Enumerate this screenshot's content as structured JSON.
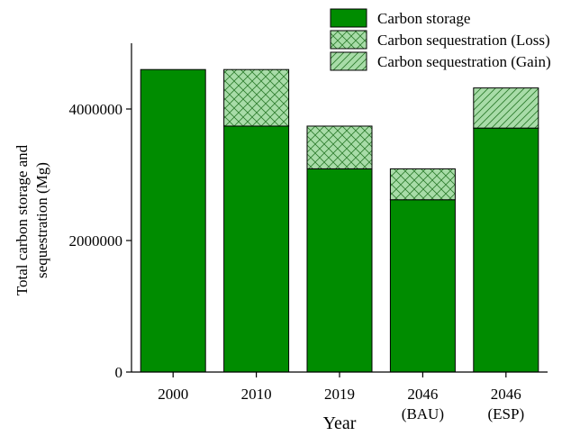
{
  "chart_data": {
    "type": "bar",
    "stacked": true,
    "categories": [
      {
        "line1": "2000",
        "line2": ""
      },
      {
        "line1": "2010",
        "line2": ""
      },
      {
        "line1": "2019",
        "line2": ""
      },
      {
        "line1": "2046",
        "line2": "(BAU)"
      },
      {
        "line1": "2046",
        "line2": "(ESP)"
      }
    ],
    "series": [
      {
        "name": "Carbon storage",
        "pattern": "solid",
        "color": "#008c00",
        "values": [
          4600000,
          3740000,
          3090000,
          2620000,
          3710000
        ]
      },
      {
        "name": "Carbon sequestration (Loss)",
        "pattern": "crosshatch",
        "color": "#a8dca8",
        "values": [
          0,
          860000,
          650000,
          470000,
          0
        ]
      },
      {
        "name": "Carbon sequestration (Gain)",
        "pattern": "diagonal",
        "color": "#a8dca8",
        "values": [
          0,
          0,
          0,
          0,
          610000
        ]
      }
    ],
    "xlabel": "Year",
    "ylabel": [
      "Total carbon storage and",
      "sequestration (Mg)"
    ],
    "ylim": [
      0,
      5000000
    ],
    "yticks": [
      0,
      2000000,
      4000000
    ],
    "ytick_labels": [
      "0",
      "2000000",
      "4000000"
    ],
    "grid": false,
    "legend_position": "top-right"
  }
}
